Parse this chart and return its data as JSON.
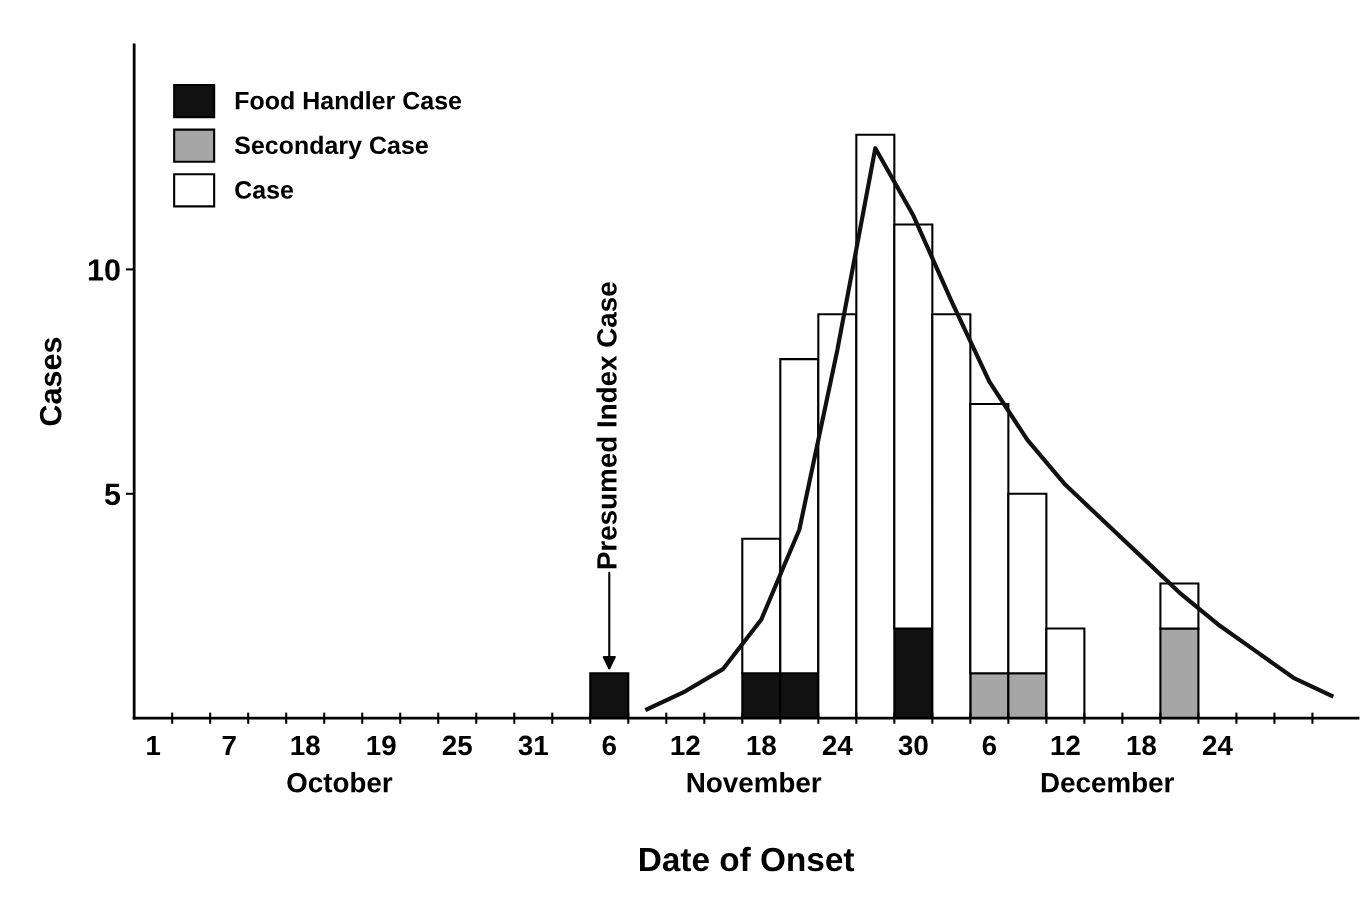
{
  "chart_data": {
    "type": "bar",
    "stacked": true,
    "xlabel": "Date of Onset",
    "ylabel": "Cases",
    "categories": [
      "1",
      null,
      "7",
      null,
      "18",
      null,
      "19",
      null,
      "25",
      null,
      "31",
      null,
      "6",
      null,
      "12",
      null,
      "18",
      null,
      "24",
      null,
      "30",
      null,
      "6",
      null,
      "12",
      null,
      "18",
      null,
      "24",
      null,
      null,
      null
    ],
    "series": [
      {
        "name": "Food Handler Case",
        "color": "#111111",
        "values": [
          0,
          0,
          0,
          0,
          0,
          0,
          0,
          0,
          0,
          0,
          0,
          0,
          1,
          0,
          0,
          0,
          1,
          1,
          0,
          0,
          2,
          0,
          0,
          0,
          0,
          0,
          0,
          0,
          0,
          0,
          0,
          0
        ]
      },
      {
        "name": "Secondary Case",
        "color": "#a6a6a6",
        "values": [
          0,
          0,
          0,
          0,
          0,
          0,
          0,
          0,
          0,
          0,
          0,
          0,
          0,
          0,
          0,
          0,
          0,
          0,
          0,
          0,
          0,
          0,
          1,
          1,
          0,
          0,
          0,
          2,
          0,
          0,
          0,
          0
        ]
      },
      {
        "name": "Case",
        "color": "#ffffff",
        "values": [
          0,
          0,
          0,
          0,
          0,
          0,
          0,
          0,
          0,
          0,
          0,
          0,
          0,
          0,
          0,
          0,
          3,
          7,
          9,
          13,
          9,
          9,
          6,
          4,
          2,
          0,
          0,
          1,
          0,
          0,
          0,
          0
        ]
      },
      {
        "type": "line",
        "color": "#111111",
        "values": [
          null,
          null,
          null,
          null,
          null,
          null,
          null,
          null,
          null,
          null,
          null,
          null,
          null,
          0.2,
          0.6,
          1.1,
          2.2,
          4.2,
          8.2,
          12.7,
          11.2,
          9.3,
          7.5,
          6.2,
          5.2,
          4.4,
          3.6,
          2.8,
          2.1,
          1.5,
          0.9,
          0.5
        ]
      }
    ],
    "ylim": [
      0,
      15
    ],
    "yticks": [
      5,
      10
    ],
    "grid": false,
    "legend": "top left",
    "annotations": [
      {
        "text": "Presumed Index Case",
        "x": "6",
        "y": 1
      },
      "October",
      "November",
      "December"
    ]
  }
}
